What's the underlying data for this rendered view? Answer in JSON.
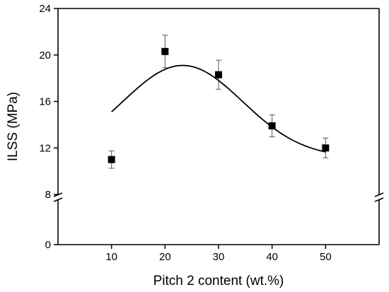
{
  "chart_data": {
    "type": "scatter",
    "title": "",
    "xlabel": "Pitch 2 content (wt.%)",
    "ylabel": "ILSS (MPa)",
    "xlim": [
      0,
      60
    ],
    "ylim": [
      0,
      24
    ],
    "axis_break": [
      8,
      8
    ],
    "x_ticks": [
      10,
      20,
      30,
      40,
      50
    ],
    "x_tick_labels": [
      "10",
      "20",
      "30",
      "40",
      "50"
    ],
    "y_ticks": [
      0,
      8,
      12,
      16,
      20,
      24
    ],
    "y_tick_labels": [
      "0",
      "8",
      "12",
      "16",
      "20",
      "24"
    ],
    "grid": false,
    "legend": "none",
    "marker": "square",
    "marker_color": "#000000",
    "line_color": "#000000",
    "series": [
      {
        "x": [
          10,
          20,
          30,
          40,
          50
        ],
        "y": [
          11.0,
          20.3,
          18.3,
          13.9,
          12.0
        ],
        "error": [
          0.75,
          1.4,
          1.25,
          0.95,
          0.85
        ],
        "fit_curve": true
      }
    ]
  }
}
